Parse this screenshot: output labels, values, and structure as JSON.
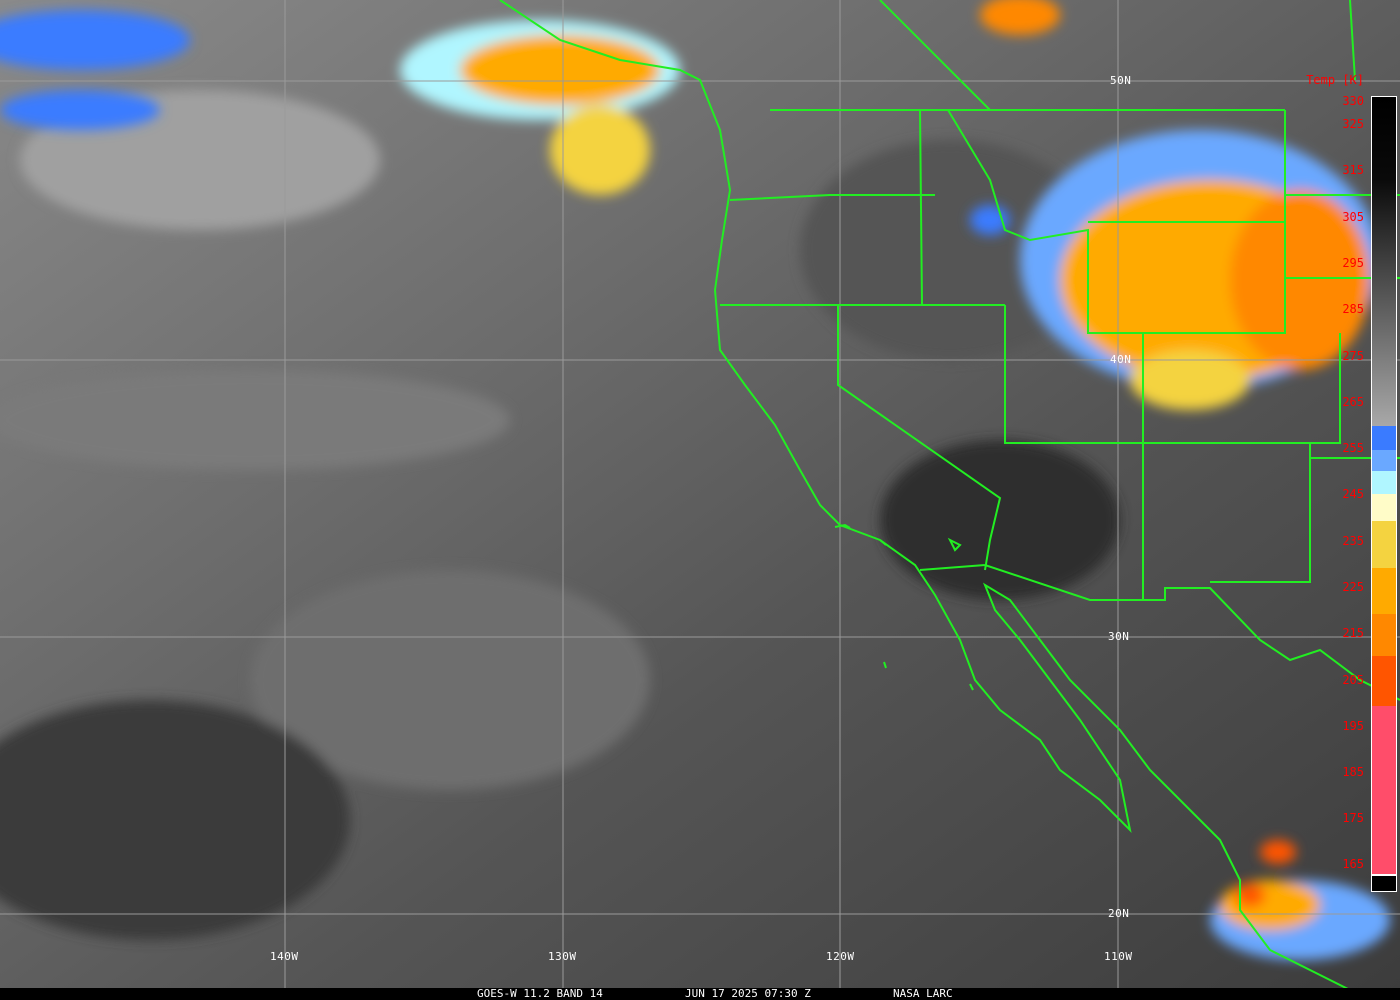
{
  "caption": {
    "satellite": "GOES-W 11.2 BAND 14",
    "datetime": "JUN 17 2025 07:30 Z",
    "source": "NASA LARC"
  },
  "colorbar": {
    "title": "Temp [K]",
    "ticks": [
      "330",
      "325",
      "315",
      "305",
      "295",
      "285",
      "275",
      "265",
      "255",
      "245",
      "235",
      "225",
      "215",
      "205",
      "195",
      "185",
      "175",
      "165"
    ],
    "colors": {
      "gray_top": "#000000",
      "gray_bottom": "#a8a8a8",
      "blue": "#3a7bff",
      "mid_blue": "#6aa8ff",
      "cyan": "#b0f6ff",
      "pale_yellow": "#fffcc8",
      "yellow": "#f4d340",
      "orange": "#ffaa00",
      "dark_orange": "#ff8800",
      "red_orange": "#ff5500",
      "pink": "#ff4d6a"
    }
  },
  "graticule": {
    "latitudes": [
      "50N",
      "40N",
      "30N",
      "20N"
    ],
    "longitudes": [
      "140W",
      "130W",
      "120W",
      "110W"
    ]
  },
  "colors": {
    "borders": "#22ee22",
    "grid": "#9a9a9a",
    "tick_labels": "#ff0000"
  }
}
